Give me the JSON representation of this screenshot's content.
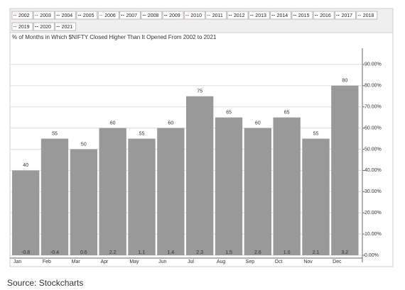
{
  "chart_data": {
    "type": "bar",
    "title": "% of Months in Which $NIFTY Closed Higher Than It Opened From 2002 to 2021",
    "source": "Source: Stockcharts",
    "legend_items": [
      {
        "name": "2002",
        "color": "#d04040"
      },
      {
        "name": "2003",
        "color": "#40a040"
      },
      {
        "name": "2004",
        "color": "#333333"
      },
      {
        "name": "2005",
        "color": "#333333"
      },
      {
        "name": "2006",
        "color": "#e08030"
      },
      {
        "name": "2007",
        "color": "#333333"
      },
      {
        "name": "2008",
        "color": "#333333"
      },
      {
        "name": "2009",
        "color": "#333333"
      },
      {
        "name": "2010",
        "color": "#d04040"
      },
      {
        "name": "2011",
        "color": "#40a040"
      },
      {
        "name": "2012",
        "color": "#333333"
      },
      {
        "name": "2013",
        "color": "#333333"
      },
      {
        "name": "2014",
        "color": "#333333"
      },
      {
        "name": "2015",
        "color": "#333333"
      },
      {
        "name": "2016",
        "color": "#333333"
      },
      {
        "name": "2017",
        "color": "#333333"
      },
      {
        "name": "2018",
        "color": "#d04080"
      },
      {
        "name": "2019",
        "color": "#40a040"
      },
      {
        "name": "2020",
        "color": "#333333"
      },
      {
        "name": "2021",
        "color": "#333333"
      }
    ],
    "categories": [
      "Jan",
      "Feb",
      "Mar",
      "Apr",
      "May",
      "Jun",
      "Jul",
      "Aug",
      "Sep",
      "Oct",
      "Nov",
      "Dec"
    ],
    "values": [
      40,
      55,
      50,
      60,
      55,
      60,
      75,
      65,
      60,
      65,
      55,
      80
    ],
    "color": "#999999",
    "returns": [
      -0.8,
      -0.4,
      0.6,
      2.2,
      1.1,
      1.4,
      2.3,
      1.5,
      2.6,
      1.0,
      2.1,
      3.2
    ],
    "returns_labels": [
      "-0.8",
      "-0.4",
      "0.6",
      "2.2",
      "1.1",
      "1.4",
      "2.3",
      "1.5",
      "2.6",
      "1.0",
      "2.1",
      "3.2"
    ],
    "ylim": [
      0,
      100
    ],
    "yticks": [
      {
        "value": 0,
        "label": "0.00%"
      },
      {
        "value": 10,
        "label": "10.00%"
      },
      {
        "value": 20,
        "label": "20.00%"
      },
      {
        "value": 30,
        "label": "30.00%"
      },
      {
        "value": 40,
        "label": "40.00%"
      },
      {
        "value": 50,
        "label": "50.00%"
      },
      {
        "value": 60,
        "label": "60.00%"
      },
      {
        "value": 70,
        "label": "70.00%"
      },
      {
        "value": 80,
        "label": "80.00%"
      },
      {
        "value": 90,
        "label": "90.00%"
      }
    ],
    "grid": true
  }
}
